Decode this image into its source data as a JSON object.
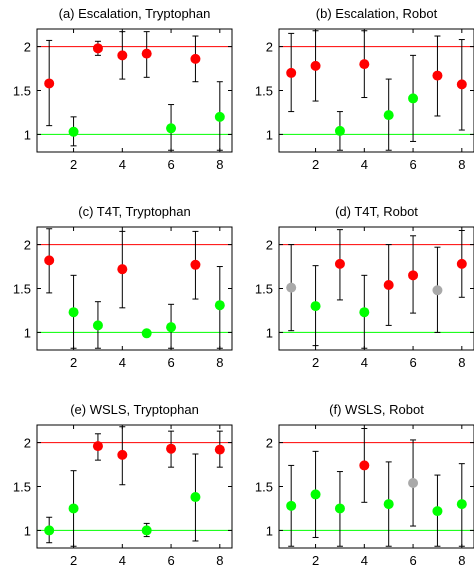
{
  "colors": {
    "red_line": "#ff0000",
    "green_line": "#00ff00",
    "red_marker": "#ff0000",
    "green_marker": "#00ff00",
    "gray_marker": "#a9a9a9",
    "error_bar": "#000000",
    "frame": "#000000"
  },
  "chart_data": [
    {
      "type": "scatter",
      "title": "(a) Escalation, Tryptophan",
      "xlim": [
        0.5,
        8.5
      ],
      "ylim": [
        0.8,
        2.2
      ],
      "xticks": [
        "2",
        "4",
        "6",
        "8"
      ],
      "yticks": [
        "1",
        "1.5",
        "2"
      ],
      "reference_lines": [
        {
          "y": 2,
          "color": "red"
        },
        {
          "y": 1,
          "color": "green"
        }
      ],
      "points": [
        {
          "x": 1,
          "y": 1.58,
          "low": 1.1,
          "high": 2.07,
          "color": "red"
        },
        {
          "x": 2,
          "y": 1.03,
          "low": 0.87,
          "high": 1.2,
          "color": "green"
        },
        {
          "x": 3,
          "y": 1.98,
          "low": 1.9,
          "high": 2.06,
          "color": "red"
        },
        {
          "x": 4,
          "y": 1.9,
          "low": 1.63,
          "high": 2.17,
          "color": "red"
        },
        {
          "x": 5,
          "y": 1.92,
          "low": 1.65,
          "high": 2.17,
          "color": "red"
        },
        {
          "x": 6,
          "y": 1.07,
          "low": 0.82,
          "high": 1.34,
          "color": "green"
        },
        {
          "x": 7,
          "y": 1.86,
          "low": 1.6,
          "high": 2.12,
          "color": "red"
        },
        {
          "x": 8,
          "y": 1.2,
          "low": 0.82,
          "high": 1.6,
          "color": "green"
        }
      ]
    },
    {
      "type": "scatter",
      "title": "(b) Escalation, Robot",
      "xlim": [
        0.5,
        8.5
      ],
      "ylim": [
        0.8,
        2.2
      ],
      "xticks": [
        "2",
        "4",
        "6",
        "8"
      ],
      "yticks": [
        "1",
        "1.5",
        "2"
      ],
      "reference_lines": [
        {
          "y": 2,
          "color": "red"
        },
        {
          "y": 1,
          "color": "green"
        }
      ],
      "points": [
        {
          "x": 1,
          "y": 1.7,
          "low": 1.26,
          "high": 2.15,
          "color": "red"
        },
        {
          "x": 2,
          "y": 1.78,
          "low": 1.38,
          "high": 2.18,
          "color": "red"
        },
        {
          "x": 3,
          "y": 1.04,
          "low": 0.82,
          "high": 1.26,
          "color": "green"
        },
        {
          "x": 4,
          "y": 1.8,
          "low": 1.42,
          "high": 2.18,
          "color": "red"
        },
        {
          "x": 5,
          "y": 1.22,
          "low": 0.82,
          "high": 1.63,
          "color": "green"
        },
        {
          "x": 6,
          "y": 1.41,
          "low": 0.92,
          "high": 1.9,
          "color": "green"
        },
        {
          "x": 7,
          "y": 1.67,
          "low": 1.21,
          "high": 2.12,
          "color": "red"
        },
        {
          "x": 8,
          "y": 1.57,
          "low": 1.05,
          "high": 2.08,
          "color": "red"
        }
      ]
    },
    {
      "type": "scatter",
      "title": "(c) T4T, Tryptophan",
      "xlim": [
        0.5,
        8.5
      ],
      "ylim": [
        0.8,
        2.2
      ],
      "xticks": [
        "2",
        "4",
        "6",
        "8"
      ],
      "yticks": [
        "1",
        "1.5",
        "2"
      ],
      "reference_lines": [
        {
          "y": 2,
          "color": "red"
        },
        {
          "y": 1,
          "color": "green"
        }
      ],
      "points": [
        {
          "x": 1,
          "y": 1.82,
          "low": 1.45,
          "high": 2.18,
          "color": "red"
        },
        {
          "x": 2,
          "y": 1.23,
          "low": 0.82,
          "high": 1.65,
          "color": "green"
        },
        {
          "x": 3,
          "y": 1.08,
          "low": 0.82,
          "high": 1.35,
          "color": "green"
        },
        {
          "x": 4,
          "y": 1.72,
          "low": 1.28,
          "high": 2.15,
          "color": "red"
        },
        {
          "x": 5,
          "y": 0.99,
          "low": 0.97,
          "high": 1.01,
          "color": "green"
        },
        {
          "x": 6,
          "y": 1.06,
          "low": 0.82,
          "high": 1.32,
          "color": "green"
        },
        {
          "x": 7,
          "y": 1.77,
          "low": 1.38,
          "high": 2.15,
          "color": "red"
        },
        {
          "x": 8,
          "y": 1.31,
          "low": 0.82,
          "high": 1.75,
          "color": "green"
        }
      ]
    },
    {
      "type": "scatter",
      "title": "(d) T4T, Robot",
      "xlim": [
        0.5,
        8.5
      ],
      "ylim": [
        0.8,
        2.2
      ],
      "xticks": [
        "2",
        "4",
        "6",
        "8"
      ],
      "yticks": [
        "1",
        "1.5",
        "2"
      ],
      "reference_lines": [
        {
          "y": 2,
          "color": "red"
        },
        {
          "y": 1,
          "color": "green"
        }
      ],
      "points": [
        {
          "x": 1,
          "y": 1.51,
          "low": 1.02,
          "high": 2.0,
          "color": "gray"
        },
        {
          "x": 2,
          "y": 1.3,
          "low": 0.85,
          "high": 1.76,
          "color": "green"
        },
        {
          "x": 3,
          "y": 1.78,
          "low": 1.37,
          "high": 2.17,
          "color": "red"
        },
        {
          "x": 4,
          "y": 1.23,
          "low": 0.82,
          "high": 1.65,
          "color": "green"
        },
        {
          "x": 5,
          "y": 1.54,
          "low": 1.08,
          "high": 2.0,
          "color": "red"
        },
        {
          "x": 6,
          "y": 1.65,
          "low": 1.22,
          "high": 2.1,
          "color": "red"
        },
        {
          "x": 7,
          "y": 1.48,
          "low": 1.0,
          "high": 1.97,
          "color": "gray"
        },
        {
          "x": 8,
          "y": 1.78,
          "low": 1.4,
          "high": 2.16,
          "color": "red"
        }
      ]
    },
    {
      "type": "scatter",
      "title": "(e) WSLS, Tryptophan",
      "xlim": [
        0.5,
        8.5
      ],
      "ylim": [
        0.8,
        2.2
      ],
      "xticks": [
        "2",
        "4",
        "6",
        "8"
      ],
      "yticks": [
        "1",
        "1.5",
        "2"
      ],
      "reference_lines": [
        {
          "y": 2,
          "color": "red"
        },
        {
          "y": 1,
          "color": "green"
        }
      ],
      "points": [
        {
          "x": 1,
          "y": 1.0,
          "low": 0.86,
          "high": 1.15,
          "color": "green"
        },
        {
          "x": 2,
          "y": 1.25,
          "low": 0.82,
          "high": 1.68,
          "color": "green"
        },
        {
          "x": 3,
          "y": 1.96,
          "low": 1.8,
          "high": 2.1,
          "color": "red"
        },
        {
          "x": 4,
          "y": 1.86,
          "low": 1.52,
          "high": 2.18,
          "color": "red"
        },
        {
          "x": 5,
          "y": 1.0,
          "low": 0.93,
          "high": 1.08,
          "color": "green"
        },
        {
          "x": 6,
          "y": 1.93,
          "low": 1.72,
          "high": 2.13,
          "color": "red"
        },
        {
          "x": 7,
          "y": 1.38,
          "low": 0.88,
          "high": 1.87,
          "color": "green"
        },
        {
          "x": 8,
          "y": 1.92,
          "low": 1.72,
          "high": 2.13,
          "color": "red"
        }
      ]
    },
    {
      "type": "scatter",
      "title": "(f) WSLS, Robot",
      "xlim": [
        0.5,
        8.5
      ],
      "ylim": [
        0.8,
        2.2
      ],
      "xticks": [
        "2",
        "4",
        "6",
        "8"
      ],
      "yticks": [
        "1",
        "1.5",
        "2"
      ],
      "reference_lines": [
        {
          "y": 2,
          "color": "red"
        },
        {
          "y": 1,
          "color": "green"
        }
      ],
      "points": [
        {
          "x": 1,
          "y": 1.28,
          "low": 0.82,
          "high": 1.74,
          "color": "green"
        },
        {
          "x": 2,
          "y": 1.41,
          "low": 0.92,
          "high": 1.9,
          "color": "green"
        },
        {
          "x": 3,
          "y": 1.25,
          "low": 0.82,
          "high": 1.67,
          "color": "green"
        },
        {
          "x": 4,
          "y": 1.74,
          "low": 1.32,
          "high": 2.16,
          "color": "red"
        },
        {
          "x": 5,
          "y": 1.3,
          "low": 0.82,
          "high": 1.78,
          "color": "green"
        },
        {
          "x": 6,
          "y": 1.54,
          "low": 1.05,
          "high": 2.03,
          "color": "gray"
        },
        {
          "x": 7,
          "y": 1.22,
          "low": 0.82,
          "high": 1.63,
          "color": "green"
        },
        {
          "x": 8,
          "y": 1.3,
          "low": 0.82,
          "high": 1.76,
          "color": "green"
        }
      ]
    }
  ]
}
